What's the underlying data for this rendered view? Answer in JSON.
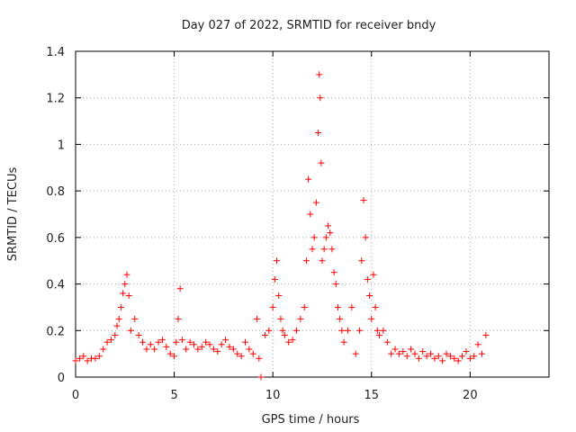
{
  "chart_data": {
    "type": "scatter",
    "title": "Day 027 of 2022, SRMTID for receiver bndy",
    "xlabel": "GPS time / hours",
    "ylabel": "SRMTID / TECUs",
    "xlim": [
      0,
      24
    ],
    "ylim": [
      0,
      1.4
    ],
    "xticks": [
      0,
      5,
      10,
      15,
      20
    ],
    "xtick_labels": [
      "0",
      "5",
      "10",
      "15",
      "20"
    ],
    "yticks": [
      0,
      0.2,
      0.4,
      0.6,
      0.8,
      1,
      1.2,
      1.4
    ],
    "ytick_labels": [
      "0",
      "0.2",
      "0.4",
      "0.6",
      "0.8",
      "1",
      "1.2",
      "1.4"
    ],
    "grid": true,
    "marker": "plus",
    "color": "#ff0000",
    "series": [
      {
        "name": "SRMTID",
        "x": [
          0.0,
          0.2,
          0.4,
          0.6,
          0.8,
          1.0,
          1.2,
          1.4,
          1.6,
          1.8,
          2.0,
          2.1,
          2.2,
          2.3,
          2.4,
          2.5,
          2.6,
          2.7,
          2.8,
          3.0,
          3.2,
          3.4,
          3.6,
          3.8,
          4.0,
          4.2,
          4.4,
          4.6,
          4.8,
          5.0,
          5.1,
          5.2,
          5.3,
          5.4,
          5.6,
          5.8,
          6.0,
          6.2,
          6.4,
          6.6,
          6.8,
          7.0,
          7.2,
          7.4,
          7.6,
          7.8,
          8.0,
          8.2,
          8.4,
          8.6,
          8.8,
          9.0,
          9.2,
          9.3,
          9.4,
          9.6,
          9.8,
          10.0,
          10.1,
          10.2,
          10.3,
          10.4,
          10.5,
          10.6,
          10.8,
          11.0,
          11.2,
          11.4,
          11.6,
          11.7,
          11.8,
          11.9,
          12.0,
          12.1,
          12.2,
          12.3,
          12.35,
          12.4,
          12.45,
          12.5,
          12.6,
          12.7,
          12.8,
          12.9,
          13.0,
          13.1,
          13.2,
          13.3,
          13.4,
          13.5,
          13.6,
          13.8,
          14.0,
          14.2,
          14.4,
          14.5,
          14.6,
          14.7,
          14.8,
          14.9,
          15.0,
          15.1,
          15.2,
          15.3,
          15.4,
          15.6,
          15.8,
          16.0,
          16.2,
          16.4,
          16.6,
          16.8,
          17.0,
          17.2,
          17.4,
          17.6,
          17.8,
          18.0,
          18.2,
          18.4,
          18.6,
          18.8,
          19.0,
          19.2,
          19.4,
          19.6,
          19.8,
          20.0,
          20.2,
          20.4,
          20.6,
          20.8
        ],
        "values": [
          0.07,
          0.08,
          0.09,
          0.07,
          0.08,
          0.08,
          0.09,
          0.12,
          0.15,
          0.16,
          0.18,
          0.22,
          0.25,
          0.3,
          0.36,
          0.4,
          0.44,
          0.35,
          0.2,
          0.25,
          0.18,
          0.15,
          0.12,
          0.14,
          0.12,
          0.15,
          0.16,
          0.13,
          0.1,
          0.09,
          0.15,
          0.25,
          0.38,
          0.16,
          0.12,
          0.15,
          0.14,
          0.12,
          0.13,
          0.15,
          0.14,
          0.12,
          0.11,
          0.14,
          0.16,
          0.13,
          0.12,
          0.1,
          0.09,
          0.15,
          0.12,
          0.1,
          0.25,
          0.08,
          0.0,
          0.18,
          0.2,
          0.3,
          0.42,
          0.5,
          0.35,
          0.25,
          0.2,
          0.18,
          0.15,
          0.16,
          0.2,
          0.25,
          0.3,
          0.5,
          0.85,
          0.7,
          0.55,
          0.6,
          0.75,
          1.05,
          1.3,
          1.2,
          0.92,
          0.5,
          0.55,
          0.6,
          0.65,
          0.62,
          0.55,
          0.45,
          0.4,
          0.3,
          0.25,
          0.2,
          0.15,
          0.2,
          0.3,
          0.1,
          0.2,
          0.5,
          0.76,
          0.6,
          0.42,
          0.35,
          0.25,
          0.44,
          0.3,
          0.2,
          0.18,
          0.2,
          0.15,
          0.1,
          0.12,
          0.1,
          0.11,
          0.09,
          0.12,
          0.1,
          0.08,
          0.11,
          0.09,
          0.1,
          0.08,
          0.09,
          0.07,
          0.1,
          0.09,
          0.08,
          0.07,
          0.09,
          0.11,
          0.08,
          0.09,
          0.14,
          0.1,
          0.18
        ]
      }
    ]
  }
}
